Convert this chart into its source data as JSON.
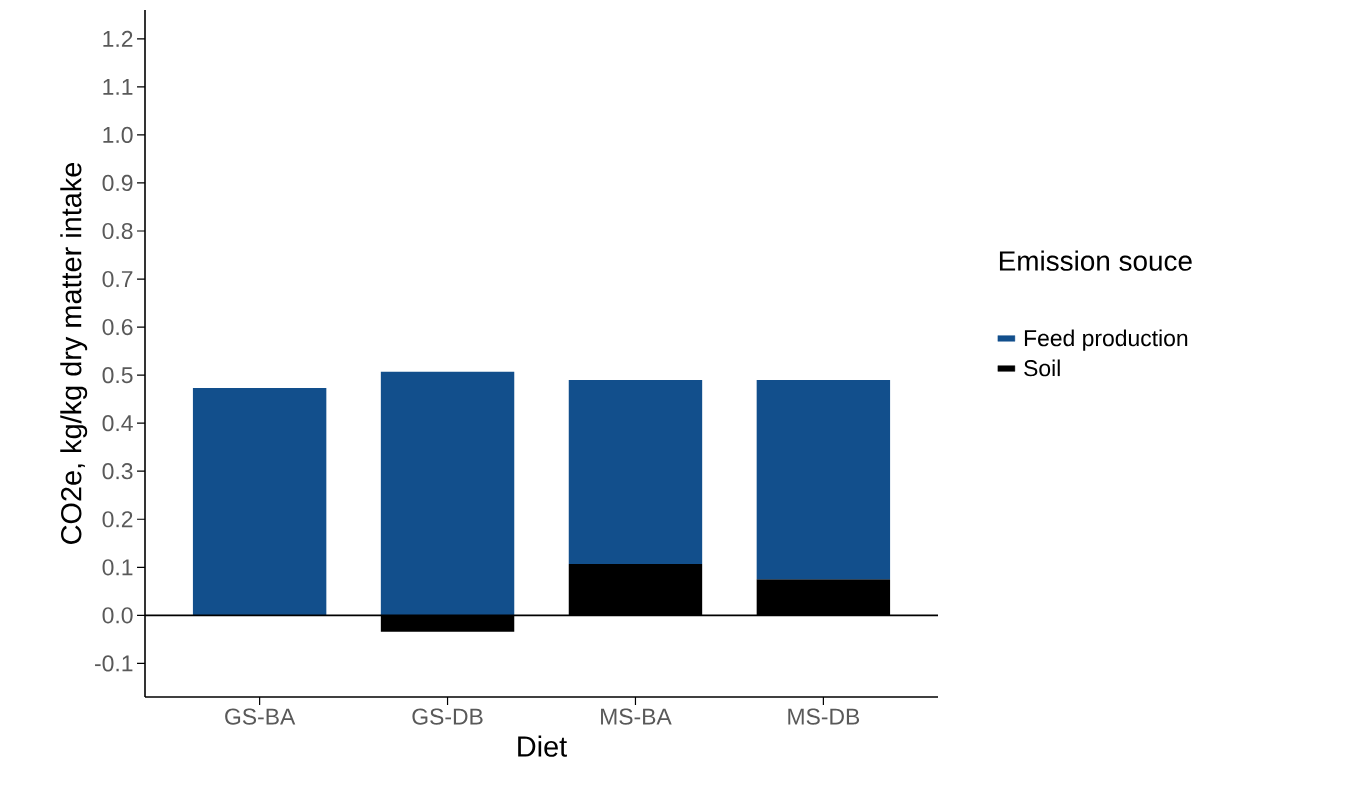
{
  "chart_data": {
    "type": "bar",
    "stacked": true,
    "xlabel": "Diet",
    "ylabel": "CO2e, kg/kg dry matter intake",
    "legend_title": "Emission souce",
    "legend": "right",
    "categories": [
      "GS-BA",
      "GS-DB",
      "MS-BA",
      "MS-DB"
    ],
    "series": [
      {
        "name": "Soil",
        "color": "#000000",
        "values": [
          0,
          -0.034,
          0.107,
          0.075
        ]
      },
      {
        "name": "Feed production",
        "color": "#124f8c",
        "values": [
          0.473,
          0.507,
          0.383,
          0.415
        ]
      }
    ],
    "ylim": [
      -0.17,
      1.26
    ],
    "yticks": [
      {
        "value": -0.1,
        "label": "-0.1"
      },
      {
        "value": 0,
        "label": "0.0"
      },
      {
        "value": 0.1,
        "label": "0.1"
      },
      {
        "value": 0.2,
        "label": "0.2"
      },
      {
        "value": 0.3,
        "label": "0.3"
      },
      {
        "value": 0.4,
        "label": "0.4"
      },
      {
        "value": 0.5,
        "label": "0.5"
      },
      {
        "value": 0.6,
        "label": "0.6"
      },
      {
        "value": 0.7,
        "label": "0.7"
      },
      {
        "value": 0.8,
        "label": "0.8"
      },
      {
        "value": 0.9,
        "label": "0.9"
      },
      {
        "value": 1.0,
        "label": "1.0"
      },
      {
        "value": 1.1,
        "label": "1.1"
      },
      {
        "value": 1.2,
        "label": "1.2"
      }
    ],
    "ref_lines": [
      {
        "axis": "y",
        "value": 0,
        "color": "#000000"
      }
    ]
  }
}
